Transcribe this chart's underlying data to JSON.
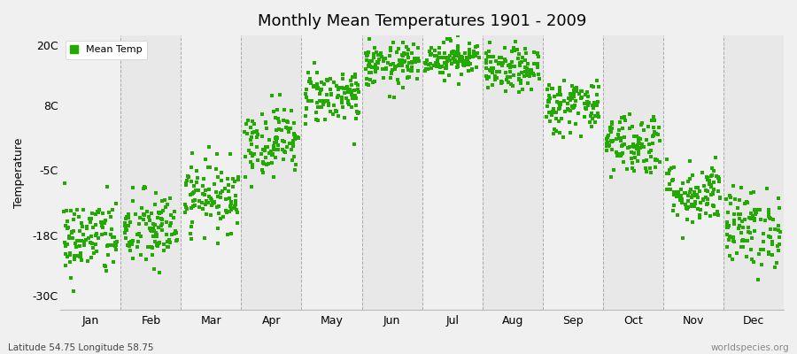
{
  "title": "Monthly Mean Temperatures 1901 - 2009",
  "ylabel": "Temperature",
  "subtitle_left": "Latitude 54.75 Longitude 58.75",
  "subtitle_right": "worldspecies.org",
  "legend_label": "Mean Temp",
  "dot_color": "#22aa00",
  "background_color": "#f0f0f0",
  "plot_bg_color": "#f0f0f0",
  "band_color_odd": "#e8e8e8",
  "yticks": [
    -30,
    -18,
    -5,
    8,
    20
  ],
  "ytick_labels": [
    "-30C",
    "-18C",
    "-5C",
    "8C",
    "20C"
  ],
  "ylim": [
    -33,
    22
  ],
  "months": [
    "Jan",
    "Feb",
    "Mar",
    "Apr",
    "May",
    "Jun",
    "Jul",
    "Aug",
    "Sep",
    "Oct",
    "Nov",
    "Dec"
  ],
  "month_means": [
    -18.5,
    -17.0,
    -10.0,
    1.0,
    10.0,
    16.0,
    17.5,
    15.0,
    8.0,
    0.5,
    -9.5,
    -16.5
  ],
  "month_stds": [
    4.0,
    4.0,
    3.5,
    3.5,
    2.8,
    2.2,
    1.8,
    2.2,
    2.8,
    3.2,
    3.2,
    4.0
  ],
  "n_years": 109,
  "seed": 42,
  "dot_size": 5,
  "title_fontsize": 13,
  "axis_fontsize": 9,
  "legend_fontsize": 8
}
